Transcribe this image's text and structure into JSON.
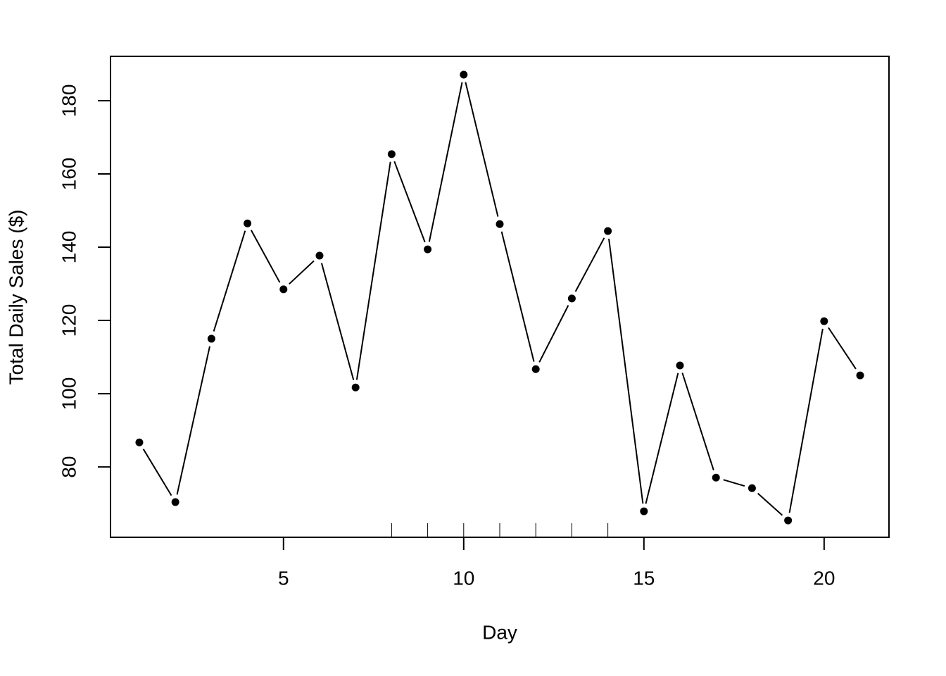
{
  "chart_data": {
    "type": "line",
    "x_label": "Day",
    "y_label": "Total Daily Sales ($)",
    "x": [
      1,
      2,
      3,
      4,
      5,
      6,
      7,
      8,
      9,
      10,
      11,
      12,
      13,
      14,
      15,
      16,
      17,
      18,
      19,
      20,
      21
    ],
    "series": [
      {
        "color": "#000000",
        "values": [
          86.7,
          70.4,
          115.0,
          146.5,
          128.5,
          137.7,
          101.7,
          165.4,
          139.4,
          187.1,
          146.3,
          106.7,
          126.0,
          144.4,
          67.9,
          107.7,
          77.1,
          74.2,
          65.4,
          119.8,
          105.0
        ]
      }
    ],
    "rug_x": [
      8,
      9,
      10,
      11,
      12,
      13,
      14
    ],
    "xlim": [
      0.2,
      21.8
    ],
    "ylim": [
      60.8,
      192.1
    ],
    "xticks": [
      5,
      10,
      15,
      20
    ],
    "yticks": [
      80,
      100,
      120,
      140,
      160,
      180
    ]
  }
}
